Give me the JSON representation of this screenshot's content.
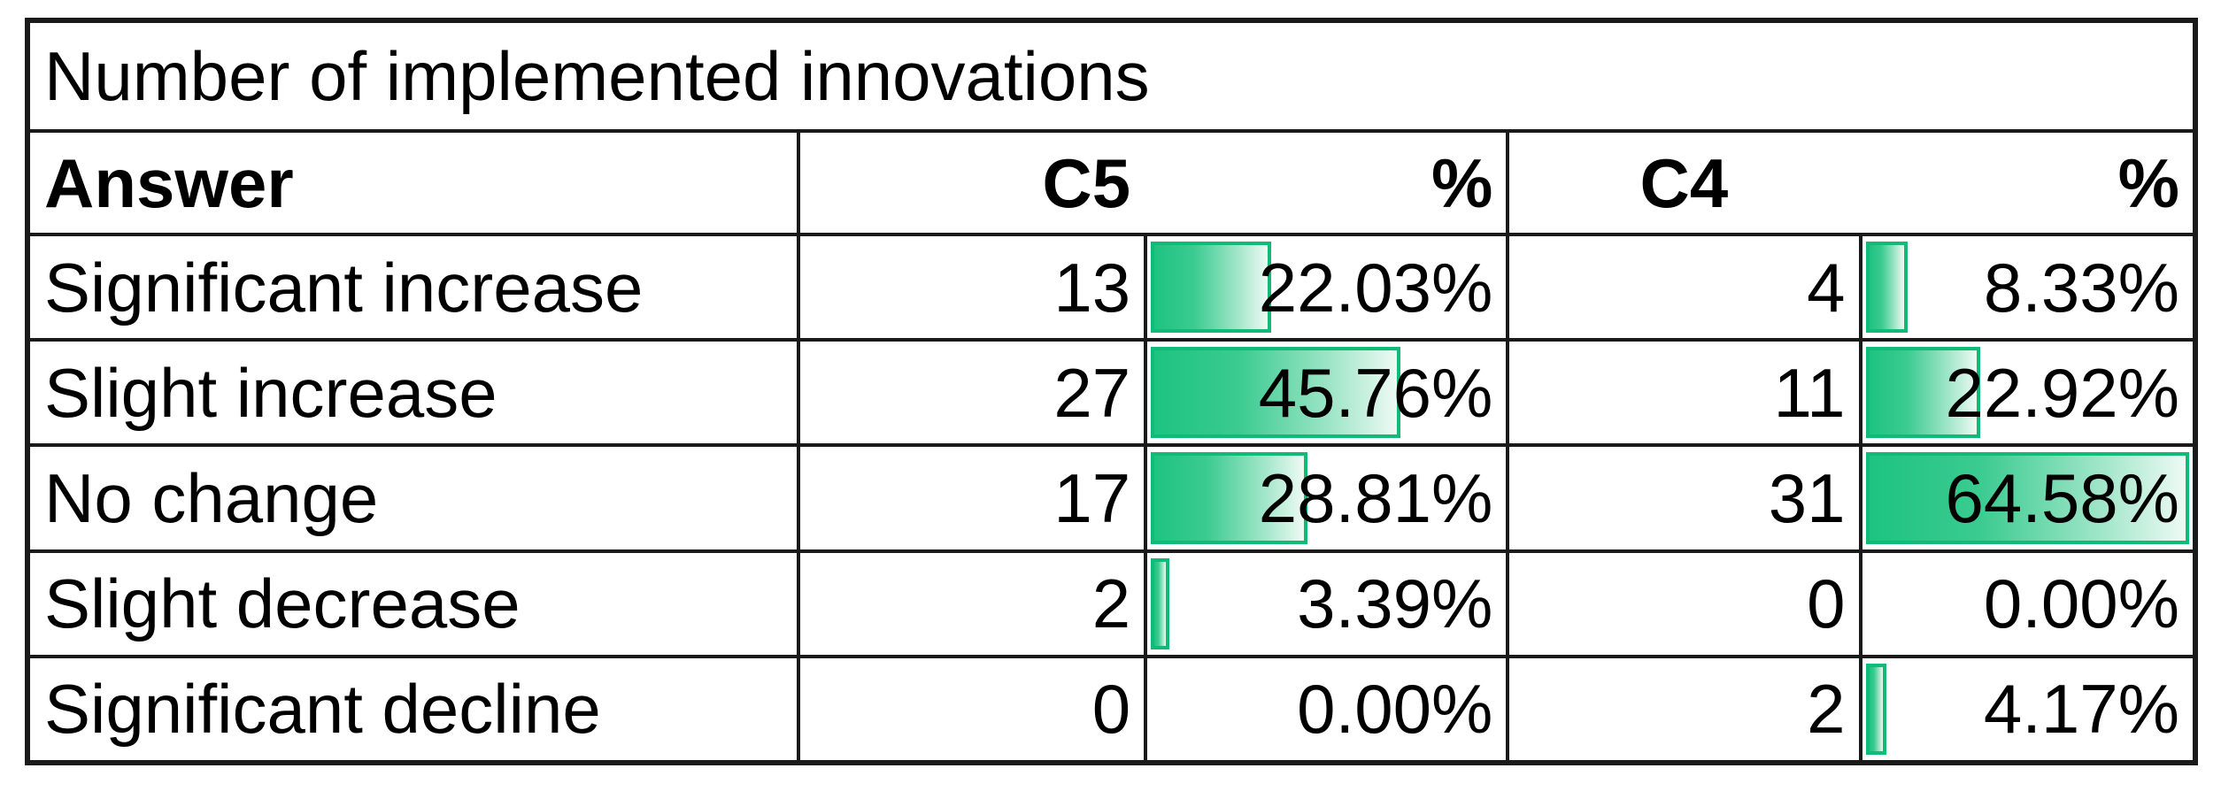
{
  "table": {
    "title": "Number of implemented innovations",
    "headers": {
      "answer": "Answer",
      "c5": "C5",
      "pct_c5": "%",
      "c4": "C4",
      "pct_c4": "%"
    },
    "rows": [
      {
        "answer": "Significant increase",
        "c5_count": "13",
        "c5_pct": "22.03%",
        "c5_pct_value": 22.03,
        "c4_count": "4",
        "c4_pct": "8.33%",
        "c4_pct_value": 8.33
      },
      {
        "answer": "Slight increase",
        "c5_count": "27",
        "c5_pct": "45.76%",
        "c5_pct_value": 45.76,
        "c4_count": "11",
        "c4_pct": "22.92%",
        "c4_pct_value": 22.92
      },
      {
        "answer": "No change",
        "c5_count": "17",
        "c5_pct": "28.81%",
        "c5_pct_value": 28.81,
        "c4_count": "31",
        "c4_pct": "64.58%",
        "c4_pct_value": 64.58
      },
      {
        "answer": "Slight decrease",
        "c5_count": "2",
        "c5_pct": "3.39%",
        "c5_pct_value": 3.39,
        "c4_count": "0",
        "c4_pct": "0.00%",
        "c4_pct_value": 0.0
      },
      {
        "answer": "Significant decline",
        "c5_count": "0",
        "c5_pct": "0.00%",
        "c5_pct_value": 0.0,
        "c4_count": "2",
        "c4_pct": "4.17%",
        "c4_pct_value": 4.17
      }
    ]
  },
  "colors": {
    "bar_fill_start": "#1ec381",
    "bar_fill_end": "#eefaf4",
    "bar_border": "#12ba77",
    "grid_line": "#1a1a1a",
    "text": "#000000",
    "background": "#ffffff"
  },
  "chart_data": {
    "type": "table",
    "title": "Number of implemented innovations",
    "categories": [
      "Significant increase",
      "Slight increase",
      "No change",
      "Slight decrease",
      "Significant decline"
    ],
    "series": [
      {
        "name": "C5",
        "values": [
          13,
          27,
          17,
          2,
          0
        ]
      },
      {
        "name": "C5 %",
        "values": [
          22.03,
          45.76,
          28.81,
          3.39,
          0.0
        ]
      },
      {
        "name": "C4",
        "values": [
          4,
          11,
          31,
          0,
          2
        ]
      },
      {
        "name": "C4 %",
        "values": [
          8.33,
          22.92,
          64.58,
          0.0,
          4.17
        ]
      }
    ],
    "bar_scale_max": 64.58,
    "bars_on": [
      "C5 %",
      "C4 %"
    ],
    "legend_position": "none",
    "grid": true
  }
}
